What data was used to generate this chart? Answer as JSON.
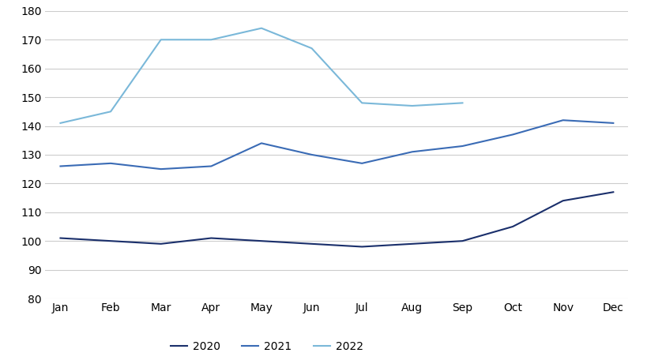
{
  "months": [
    "Jan",
    "Feb",
    "Mar",
    "Apr",
    "May",
    "Jun",
    "Jul",
    "Aug",
    "Sep",
    "Oct",
    "Nov",
    "Dec"
  ],
  "series_2020": [
    101,
    100,
    99,
    101,
    100,
    99,
    98,
    99,
    100,
    105,
    114,
    117
  ],
  "series_2021": [
    126,
    127,
    125,
    126,
    134,
    130,
    127,
    131,
    133,
    137,
    142,
    141
  ],
  "series_2022": [
    141,
    145,
    170,
    170,
    174,
    167,
    148,
    147,
    148,
    null,
    null,
    null
  ],
  "color_2020": "#1a2f6b",
  "color_2021": "#3a6bb5",
  "color_2022": "#7ab8d9",
  "ylim": [
    80,
    180
  ],
  "yticks": [
    80,
    90,
    100,
    110,
    120,
    130,
    140,
    150,
    160,
    170,
    180
  ],
  "background_color": "#ffffff",
  "grid_color": "#cccccc",
  "linewidth": 1.5
}
